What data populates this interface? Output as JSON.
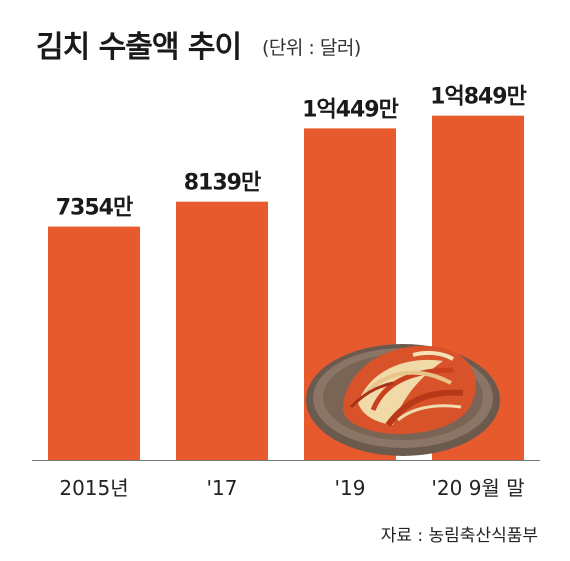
{
  "header": {
    "title": "김치 수출액 추이",
    "unit": "(단위 : 달러)"
  },
  "footer": {
    "source": "자료 : 농림축산식품부"
  },
  "colors": {
    "bar": "#E75A2E",
    "baseline": "#777777",
    "value_label": "#1a1a1a",
    "tick_label": "#222222"
  },
  "chart_data": {
    "type": "bar",
    "title": "김치 수출액 추이",
    "subtitle": "(단위 : 달러)",
    "categories": [
      "2015년",
      "'17",
      "'19",
      "'20 9월 말"
    ],
    "values": [
      73540000,
      81390000,
      104490000,
      108490000
    ],
    "value_labels": [
      "7354만",
      "8139만",
      "1억449만",
      "1억849만"
    ],
    "ylim": [
      0,
      115000000
    ],
    "grid": false,
    "legend": "none"
  },
  "decoration": {
    "image": "kimchi-plate-photo"
  }
}
